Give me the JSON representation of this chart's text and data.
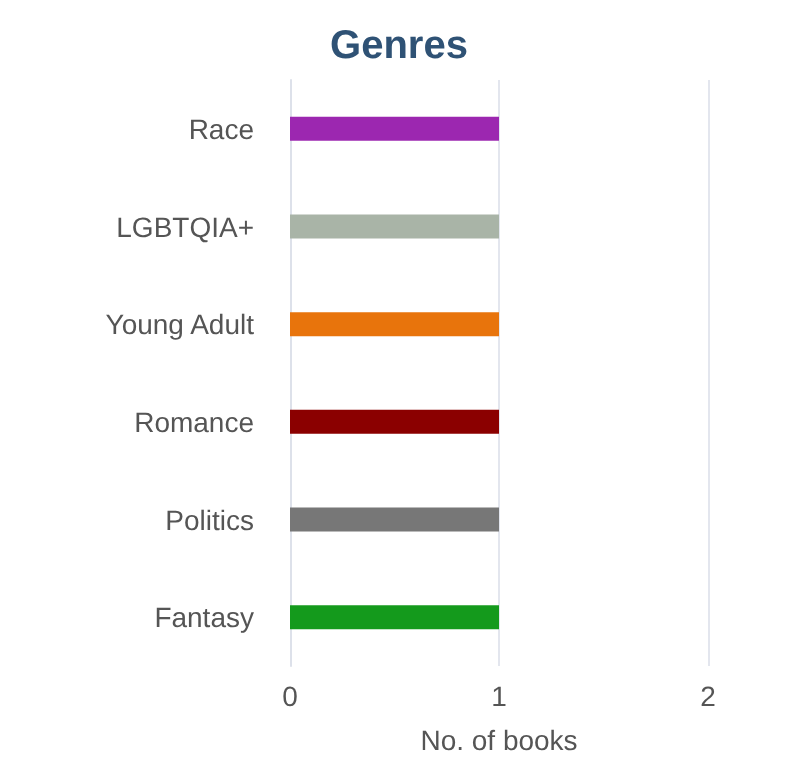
{
  "chart_data": {
    "type": "bar",
    "orientation": "horizontal",
    "title": "Genres",
    "xlabel": "No. of books",
    "categories": [
      "Race",
      "LGBTQIA+",
      "Young Adult",
      "Romance",
      "Politics",
      "Fantasy"
    ],
    "values": [
      1,
      1,
      1,
      1,
      1,
      1
    ],
    "colors": [
      "#9c27b0",
      "#a9b4a7",
      "#e8740c",
      "#8b0000",
      "#777777",
      "#149a1c"
    ],
    "xlim": [
      0,
      2
    ],
    "xticks": [
      0,
      1,
      2
    ],
    "grid": "x"
  }
}
